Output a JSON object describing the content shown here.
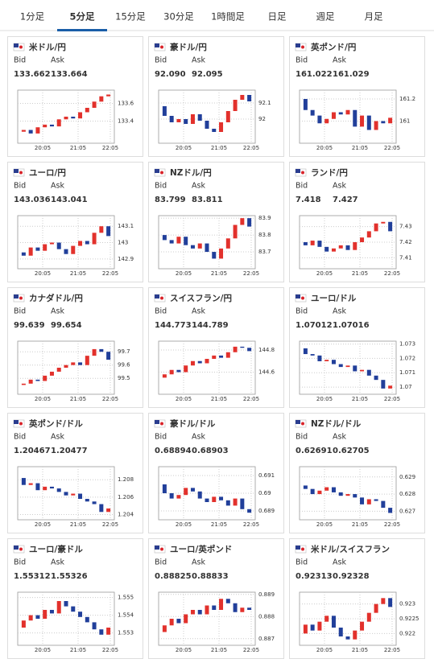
{
  "tabs": [
    "1分足",
    "5分足",
    "15分足",
    "30分足",
    "1時間足",
    "日足",
    "週足",
    "月足"
  ],
  "active_tab": 1,
  "bid_label": "Bid",
  "ask_label": "Ask",
  "time_labels": [
    "20:05",
    "21:05",
    "22:05"
  ],
  "cards": [
    {
      "name": "米ドル/円",
      "bid": "133.662",
      "ask": "133.664",
      "chart": {
        "type": "candlestick",
        "ylim": [
          133.15,
          133.75
        ],
        "yticks": [
          133.4,
          133.6
        ],
        "values": [
          133.28,
          133.3,
          133.26,
          133.33,
          133.36,
          133.34,
          133.42,
          133.45,
          133.43,
          133.5,
          133.55,
          133.62,
          133.68,
          133.7
        ]
      }
    },
    {
      "name": "豪ドル/円",
      "bid": "92.090",
      "ask": "92.095",
      "chart": {
        "type": "candlestick",
        "ylim": [
          91.85,
          92.18
        ],
        "yticks": [
          92,
          92.1
        ],
        "values": [
          92.08,
          92.02,
          91.98,
          92.0,
          91.97,
          92.03,
          91.99,
          91.94,
          91.92,
          91.98,
          92.05,
          92.12,
          92.15,
          92.11
        ]
      }
    },
    {
      "name": "英ポンド/円",
      "bid": "161.022",
      "ask": "161.029",
      "chart": {
        "type": "candlestick",
        "ylim": [
          160.8,
          161.28
        ],
        "yticks": [
          161,
          161.2
        ],
        "values": [
          161.2,
          161.1,
          161.05,
          160.98,
          161.02,
          161.08,
          161.06,
          161.1,
          160.95,
          161.05,
          160.92,
          161.0,
          160.98,
          161.03
        ]
      }
    },
    {
      "name": "ユーロ/円",
      "bid": "143.036",
      "ask": "143.041",
      "chart": {
        "type": "candlestick",
        "ylim": [
          142.84,
          143.165
        ],
        "yticks": [
          142.9,
          143,
          143.1
        ],
        "values": [
          142.94,
          142.92,
          142.97,
          142.95,
          142.99,
          143.0,
          142.96,
          142.93,
          142.98,
          143.01,
          142.99,
          143.06,
          143.1,
          143.04
        ]
      }
    },
    {
      "name": "NZドル/円",
      "bid": "83.799",
      "ask": "83.811",
      "chart": {
        "type": "candlestick",
        "ylim": [
          83.6,
          83.915
        ],
        "yticks": [
          83.7,
          83.8,
          83.9
        ],
        "values": [
          83.8,
          83.77,
          83.75,
          83.79,
          83.74,
          83.72,
          83.75,
          83.7,
          83.66,
          83.72,
          83.78,
          83.86,
          83.9,
          83.85
        ]
      }
    },
    {
      "name": "ランド/円",
      "bid": "7.418",
      "ask": "7.427",
      "chart": {
        "type": "candlestick",
        "ylim": [
          7.403,
          7.437
        ],
        "yticks": [
          7.41,
          7.42,
          7.43
        ],
        "values": [
          7.42,
          7.418,
          7.421,
          7.417,
          7.414,
          7.416,
          7.418,
          7.415,
          7.42,
          7.423,
          7.427,
          7.432,
          7.433,
          7.427
        ]
      }
    },
    {
      "name": "カナダドル/円",
      "bid": "99.639",
      "ask": "99.654",
      "chart": {
        "type": "candlestick",
        "ylim": [
          99.38,
          99.78
        ],
        "yticks": [
          99.5,
          99.6,
          99.7
        ],
        "values": [
          99.45,
          99.46,
          99.49,
          99.48,
          99.52,
          99.55,
          99.58,
          99.6,
          99.62,
          99.6,
          99.67,
          99.72,
          99.7,
          99.64
        ]
      }
    },
    {
      "name": "スイスフラン/円",
      "bid": "144.773",
      "ask": "144.789",
      "chart": {
        "type": "candlestick",
        "ylim": [
          144.4,
          144.88
        ],
        "yticks": [
          144.6,
          144.8
        ],
        "values": [
          144.55,
          144.58,
          144.62,
          144.6,
          144.66,
          144.7,
          144.68,
          144.72,
          144.75,
          144.73,
          144.78,
          144.83,
          144.82,
          144.79
        ]
      }
    },
    {
      "name": "ユーロ/ドル",
      "bid": "1.07012",
      "ask": "1.07016",
      "chart": {
        "type": "candlestick",
        "ylim": [
          1.0695,
          1.0732
        ],
        "yticks": [
          1.07,
          1.071,
          1.072,
          1.073
        ],
        "values": [
          1.0727,
          1.0723,
          1.0722,
          1.0718,
          1.0719,
          1.0716,
          1.0714,
          1.0715,
          1.0711,
          1.0712,
          1.0708,
          1.0705,
          1.0699,
          1.0701
        ]
      }
    },
    {
      "name": "英ポンド/ドル",
      "bid": "1.20467",
      "ask": "1.20477",
      "chart": {
        "type": "candlestick",
        "ylim": [
          1.2034,
          1.2095
        ],
        "yticks": [
          1.204,
          1.206,
          1.208
        ],
        "values": [
          1.2082,
          1.2074,
          1.2076,
          1.2068,
          1.2072,
          1.207,
          1.2066,
          1.2062,
          1.2064,
          1.2058,
          1.2055,
          1.2052,
          1.2043,
          1.2047
        ]
      }
    },
    {
      "name": "豪ドル/ドル",
      "bid": "0.68894",
      "ask": "0.68903",
      "chart": {
        "type": "candlestick",
        "ylim": [
          0.6885,
          0.6915
        ],
        "yticks": [
          0.689,
          0.69,
          0.691
        ],
        "values": [
          0.6905,
          0.69,
          0.6897,
          0.6899,
          0.6903,
          0.6901,
          0.6897,
          0.6895,
          0.6898,
          0.6896,
          0.6893,
          0.6897,
          0.6891,
          0.6889
        ]
      }
    },
    {
      "name": "NZドル/ドル",
      "bid": "0.62691",
      "ask": "0.62705",
      "chart": {
        "type": "candlestick",
        "ylim": [
          0.6265,
          0.6296
        ],
        "yticks": [
          0.627,
          0.628,
          0.629
        ],
        "values": [
          0.6285,
          0.6283,
          0.628,
          0.6282,
          0.6284,
          0.6281,
          0.6279,
          0.628,
          0.6278,
          0.6274,
          0.6277,
          0.6276,
          0.6272,
          0.6269
        ]
      }
    },
    {
      "name": "ユーロ/豪ドル",
      "bid": "1.55312",
      "ask": "1.55326",
      "chart": {
        "type": "candlestick",
        "ylim": [
          1.5523,
          1.5553
        ],
        "yticks": [
          1.553,
          1.554,
          1.555
        ],
        "values": [
          1.5533,
          1.5537,
          1.554,
          1.5538,
          1.5543,
          1.5541,
          1.5548,
          1.5545,
          1.5542,
          1.5539,
          1.5536,
          1.5532,
          1.5529,
          1.5533
        ]
      }
    },
    {
      "name": "ユーロ/英ポンド",
      "bid": "0.88825",
      "ask": "0.88833",
      "chart": {
        "type": "candlestick",
        "ylim": [
          0.8867,
          0.8891
        ],
        "yticks": [
          0.887,
          0.888,
          0.889
        ],
        "values": [
          0.8873,
          0.8876,
          0.8879,
          0.8877,
          0.8881,
          0.8883,
          0.8881,
          0.8885,
          0.8883,
          0.8888,
          0.8886,
          0.8882,
          0.8884,
          0.8883
        ]
      }
    },
    {
      "name": "米ドル/スイスフラン",
      "bid": "0.92313",
      "ask": "0.92328",
      "chart": {
        "type": "candlestick",
        "ylim": [
          0.9216,
          0.9234
        ],
        "yticks": [
          0.922,
          0.9225,
          0.923
        ],
        "values": [
          0.922,
          0.9223,
          0.9221,
          0.9224,
          0.9226,
          0.9222,
          0.9219,
          0.9218,
          0.9221,
          0.9224,
          0.9227,
          0.923,
          0.9232,
          0.9229
        ]
      }
    }
  ]
}
